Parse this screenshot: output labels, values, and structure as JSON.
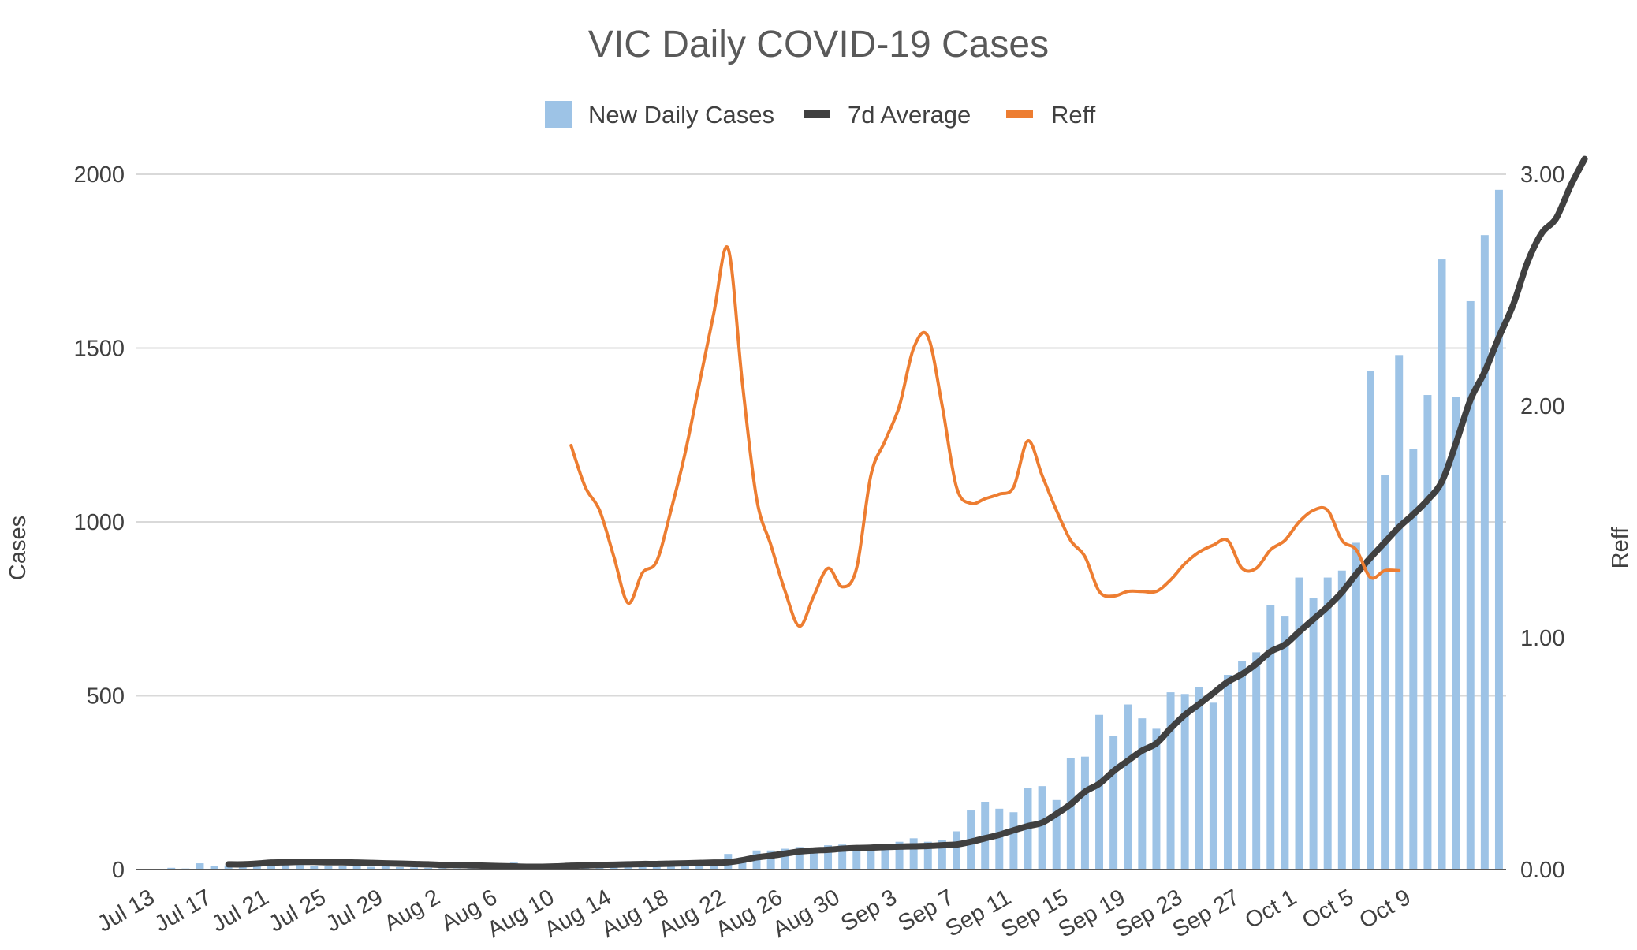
{
  "chart_data": {
    "type": "bar",
    "title": "VIC Daily COVID-19 Cases",
    "ylabel": "Cases",
    "y2label": "Reff",
    "ylim": [
      0,
      2000
    ],
    "y2lim": [
      0,
      3
    ],
    "yticks": [
      "0",
      "500",
      "1000",
      "1500",
      "2000"
    ],
    "y2ticks": [
      "0.00",
      "1.00",
      "2.00",
      "3.00"
    ],
    "grid": true,
    "legend_position": "top",
    "start_date": "2021-07-13",
    "x_tick_labels": [
      "Jul 13",
      "Jul 17",
      "Jul 21",
      "Jul 25",
      "Jul 29",
      "Aug 2",
      "Aug 6",
      "Aug 10",
      "Aug 14",
      "Aug 18",
      "Aug 22",
      "Aug 26",
      "Aug 30",
      "Sep 3",
      "Sep 7",
      "Sep 11",
      "Sep 15",
      "Sep 19",
      "Sep 23",
      "Sep 27",
      "Oct 1",
      "Oct 5",
      "Oct 9"
    ],
    "series": [
      {
        "name": "New Daily Cases",
        "type": "bar",
        "axis": "left",
        "color": "#9dc3e6",
        "values": [
          0,
          2,
          5,
          3,
          18,
          10,
          12,
          15,
          22,
          14,
          26,
          13,
          10,
          11,
          10,
          9,
          8,
          10,
          7,
          6,
          5,
          4,
          3,
          3,
          4,
          6,
          20,
          10,
          15,
          12,
          14,
          13,
          15,
          20,
          21,
          18,
          20,
          20,
          24,
          15,
          22,
          45,
          35,
          55,
          55,
          60,
          65,
          62,
          70,
          72,
          60,
          65,
          70,
          80,
          90,
          80,
          85,
          110,
          170,
          195,
          175,
          165,
          235,
          240,
          200,
          320,
          325,
          445,
          385,
          475,
          435,
          405,
          510,
          505,
          525,
          480,
          560,
          600,
          625,
          760,
          730,
          840,
          780,
          840,
          860,
          940,
          1435,
          1135,
          1480,
          1210,
          1365,
          1755,
          1360,
          1635,
          1825,
          1955
        ]
      },
      {
        "name": "7d Average",
        "type": "line",
        "axis": "left",
        "color": "#404040",
        "start_index": 6,
        "values": [
          15,
          15,
          17,
          20,
          21,
          22,
          22,
          21,
          21,
          20,
          19,
          18,
          17,
          16,
          15,
          13,
          13,
          12,
          11,
          10,
          9,
          8,
          8,
          9,
          11,
          12,
          13,
          14,
          15,
          16,
          16,
          17,
          18,
          19,
          20,
          21,
          27,
          35,
          40,
          46,
          52,
          55,
          57,
          60,
          62,
          63,
          65,
          66,
          67,
          68,
          70,
          72,
          80,
          90,
          100,
          113,
          125,
          135,
          160,
          188,
          224,
          247,
          283,
          313,
          342,
          363,
          406,
          445,
          476,
          508,
          540,
          562,
          592,
          627,
          647,
          684,
          720,
          756,
          798,
          850,
          897,
          941,
          985,
          1022,
          1063,
          1116,
          1228,
          1351,
          1432,
          1532,
          1625,
          1747,
          1831,
          1873,
          1965,
          2044
        ]
      },
      {
        "name": "Reff",
        "type": "line",
        "axis": "right",
        "color": "#ed7d31",
        "start_index": 30,
        "values": [
          1.83,
          1.65,
          1.55,
          1.35,
          1.15,
          1.28,
          1.33,
          1.55,
          1.8,
          2.1,
          2.4,
          2.68,
          2.1,
          1.6,
          1.4,
          1.2,
          1.05,
          1.18,
          1.3,
          1.22,
          1.3,
          1.7,
          1.85,
          2.0,
          2.25,
          2.3,
          2.0,
          1.65,
          1.58,
          1.6,
          1.62,
          1.65,
          1.85,
          1.7,
          1.55,
          1.42,
          1.35,
          1.2,
          1.18,
          1.2,
          1.2,
          1.2,
          1.25,
          1.32,
          1.37,
          1.4,
          1.42,
          1.3,
          1.3,
          1.38,
          1.42,
          1.5,
          1.55,
          1.55,
          1.42,
          1.38,
          1.26,
          1.29,
          1.29
        ]
      }
    ]
  }
}
